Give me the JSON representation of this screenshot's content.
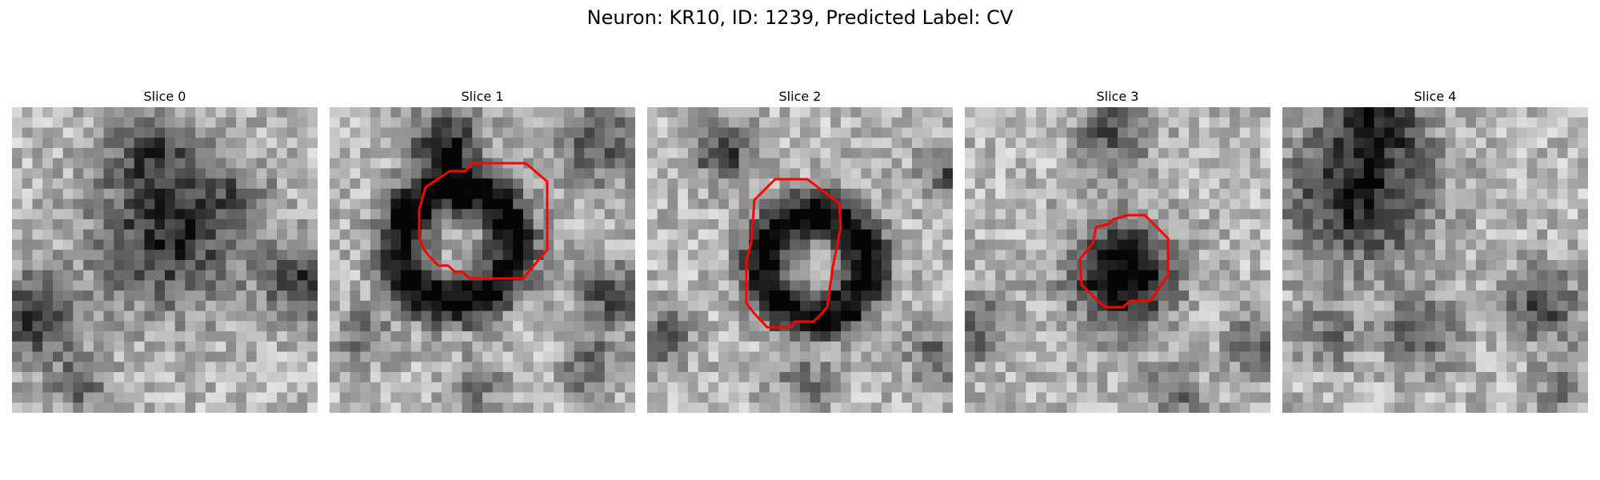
{
  "figure": {
    "title": "Neuron: KR10, ID: 1239, Predicted Label: CV",
    "outline_color": "#ff0000"
  },
  "panels": [
    {
      "title": "Slice 0"
    },
    {
      "title": "Slice 1"
    },
    {
      "title": "Slice 2"
    },
    {
      "title": "Slice 3"
    },
    {
      "title": "Slice 4"
    }
  ]
}
